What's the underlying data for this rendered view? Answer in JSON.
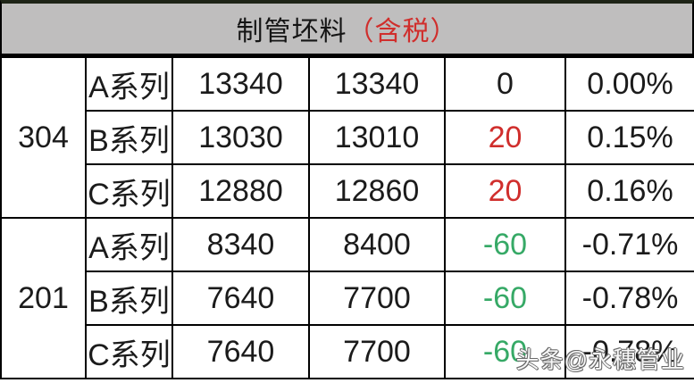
{
  "header": {
    "title": "制管坯料",
    "tax_note": "（含税）"
  },
  "table": {
    "groups": [
      {
        "grade": "304",
        "rows": [
          {
            "series": "A系列",
            "price_new": "13340",
            "price_old": "13340",
            "change": "0",
            "change_color": "black",
            "pct": "0.00%"
          },
          {
            "series": "B系列",
            "price_new": "13030",
            "price_old": "13010",
            "change": "20",
            "change_color": "red",
            "pct": "0.15%"
          },
          {
            "series": "C系列",
            "price_new": "12880",
            "price_old": "12860",
            "change": "20",
            "change_color": "red",
            "pct": "0.16%"
          }
        ]
      },
      {
        "grade": "201",
        "rows": [
          {
            "series": "A系列",
            "price_new": "8340",
            "price_old": "8400",
            "change": "-60",
            "change_color": "green",
            "pct": "-0.71%"
          },
          {
            "series": "B系列",
            "price_new": "7640",
            "price_old": "7700",
            "change": "-60",
            "change_color": "green",
            "pct": "-0.78%"
          },
          {
            "series": "C系列",
            "price_new": "7640",
            "price_old": "7700",
            "change": "-60",
            "change_color": "green",
            "pct": "-0.78%"
          }
        ]
      }
    ]
  },
  "watermark": "头条@永穗管业",
  "colors": {
    "positive_red": "#d02e2c",
    "negative_green": "#36a966",
    "header_bg": "#bfbebe",
    "border": "#000000",
    "top_border": "#1e2417"
  }
}
